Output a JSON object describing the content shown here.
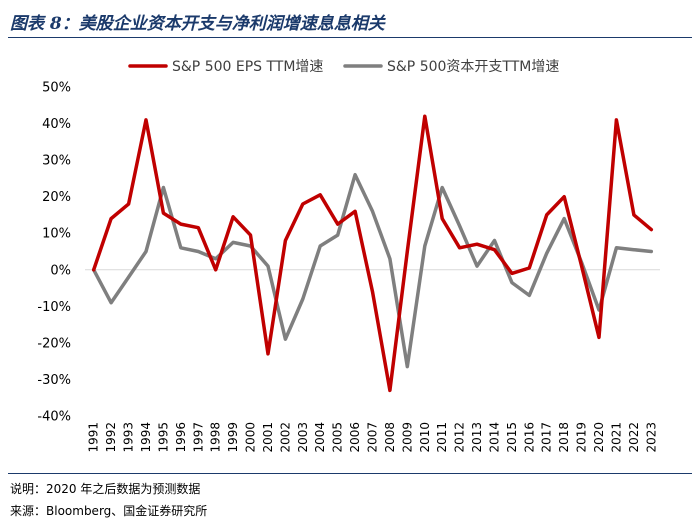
{
  "header": {
    "title": "图表 8：美股企业资本开支与净利润增速息息相关"
  },
  "footer": {
    "note": "说明：2020 年之后数据为预测数据",
    "source": "来源：Bloomberg、国金证券研究所"
  },
  "colors": {
    "eps": "#c00000",
    "capex": "#7f7f7f",
    "axis": "#d9d9d9"
  },
  "chart_data": {
    "type": "line",
    "title": "",
    "xlabel": "",
    "ylabel": "",
    "ylim": [
      -40,
      50
    ],
    "yticks": [
      50,
      40,
      30,
      20,
      10,
      0,
      -10,
      -20,
      -30,
      -40
    ],
    "ytick_labels": [
      "50%",
      "40%",
      "30%",
      "20%",
      "10%",
      "0%",
      "-10%",
      "-20%",
      "-30%",
      "-40%"
    ],
    "legend_position": "top",
    "categories": [
      "1991",
      "1992",
      "1993",
      "1994",
      "1995",
      "1996",
      "1997",
      "1998",
      "1999",
      "2000",
      "2001",
      "2002",
      "2003",
      "2004",
      "2005",
      "2006",
      "2007",
      "2008",
      "2009",
      "2010",
      "2011",
      "2012",
      "2013",
      "2014",
      "2015",
      "2016",
      "2017",
      "2018",
      "2019",
      "2020",
      "2021",
      "2022",
      "2023"
    ],
    "series": [
      {
        "name": "S&P 500 EPS TTM增速",
        "color": "#c00000",
        "values": [
          0,
          14,
          18,
          41,
          15.5,
          12.5,
          11.5,
          0,
          14.5,
          9.5,
          -23,
          8,
          18,
          20.5,
          12.5,
          16,
          -6,
          -33,
          5,
          42,
          14,
          6,
          7,
          5.5,
          -1,
          0.5,
          15,
          20,
          1,
          -18.5,
          41,
          15,
          11
        ]
      },
      {
        "name": "S&P 500资本开支TTM增速",
        "color": "#7f7f7f",
        "values": [
          0,
          -9,
          -2,
          5,
          22.5,
          6,
          5,
          3,
          7.5,
          6.5,
          1,
          -19,
          -8,
          6.5,
          9.5,
          26,
          16,
          3,
          -26.5,
          6.5,
          22.5,
          12,
          1,
          8,
          -3.5,
          -7,
          4.5,
          14,
          2,
          -11,
          6,
          5.5,
          5
        ]
      }
    ]
  }
}
